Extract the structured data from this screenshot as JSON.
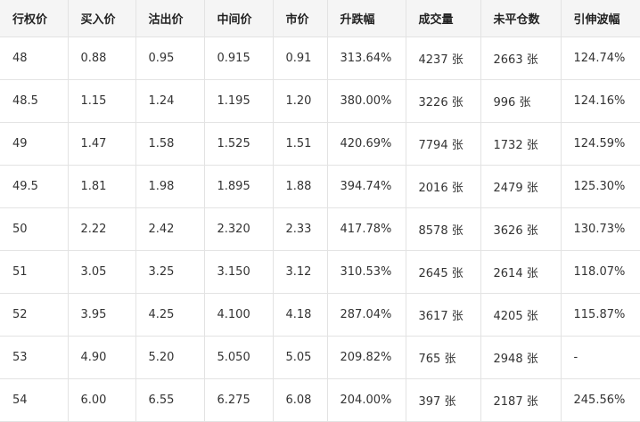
{
  "table": {
    "header": [
      "行权价",
      "买入价",
      "沽出价",
      "中间价",
      "市价",
      "升跌幅",
      "成交量",
      "未平仓数",
      "引伸波幅"
    ],
    "rows": [
      [
        "48",
        "0.88",
        "0.95",
        "0.915",
        "0.91",
        "313.64%",
        "4237 张",
        "2663 张",
        "124.74%"
      ],
      [
        "48.5",
        "1.15",
        "1.24",
        "1.195",
        "1.20",
        "380.00%",
        "3226 张",
        "996 张",
        "124.16%"
      ],
      [
        "49",
        "1.47",
        "1.58",
        "1.525",
        "1.51",
        "420.69%",
        "7794 张",
        "1732 张",
        "124.59%"
      ],
      [
        "49.5",
        "1.81",
        "1.98",
        "1.895",
        "1.88",
        "394.74%",
        "2016 张",
        "2479 张",
        "125.30%"
      ],
      [
        "50",
        "2.22",
        "2.42",
        "2.320",
        "2.33",
        "417.78%",
        "8578 张",
        "3626 张",
        "130.73%"
      ],
      [
        "51",
        "3.05",
        "3.25",
        "3.150",
        "3.12",
        "310.53%",
        "2645 张",
        "2614 张",
        "118.07%"
      ],
      [
        "52",
        "3.95",
        "4.25",
        "4.100",
        "4.18",
        "287.04%",
        "3617 张",
        "4205 张",
        "115.87%"
      ],
      [
        "53",
        "4.90",
        "5.20",
        "5.050",
        "5.05",
        "209.82%",
        "765 张",
        "2948 张",
        "-"
      ],
      [
        "54",
        "6.00",
        "6.55",
        "6.275",
        "6.08",
        "204.00%",
        "397 张",
        "2187 张",
        "245.56%"
      ]
    ]
  }
}
